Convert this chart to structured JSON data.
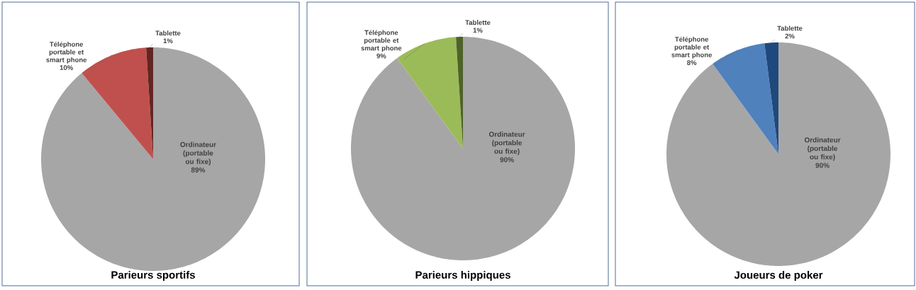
{
  "chart_data": [
    {
      "type": "pie",
      "title": "Parieurs sportifs",
      "categories": [
        "Ordinateur (portable ou fixe)",
        "Téléphone portable et smart phone",
        "Tablette"
      ],
      "values": [
        89,
        10,
        1
      ],
      "colors": [
        "#a6a6a6",
        "#c0504d",
        "#632523"
      ],
      "value_labels": [
        "89%",
        "10%",
        "1%"
      ]
    },
    {
      "type": "pie",
      "title": "Parieurs hippiques",
      "categories": [
        "Ordinateur (portable ou fixe)",
        "Téléphone portable et smart phone",
        "Tablette"
      ],
      "values": [
        90,
        9,
        1
      ],
      "colors": [
        "#a6a6a6",
        "#9bbb59",
        "#4f6228"
      ],
      "value_labels": [
        "90%",
        "9%",
        "1%"
      ]
    },
    {
      "type": "pie",
      "title": "Joueurs de poker",
      "categories": [
        "Ordinateur (portable ou fixe)",
        "Téléphone portable et smart phone",
        "Tablette"
      ],
      "values": [
        90,
        8,
        2
      ],
      "colors": [
        "#a6a6a6",
        "#4f81bd",
        "#1f497d"
      ],
      "value_labels": [
        "90%",
        "8%",
        "2%"
      ]
    }
  ]
}
